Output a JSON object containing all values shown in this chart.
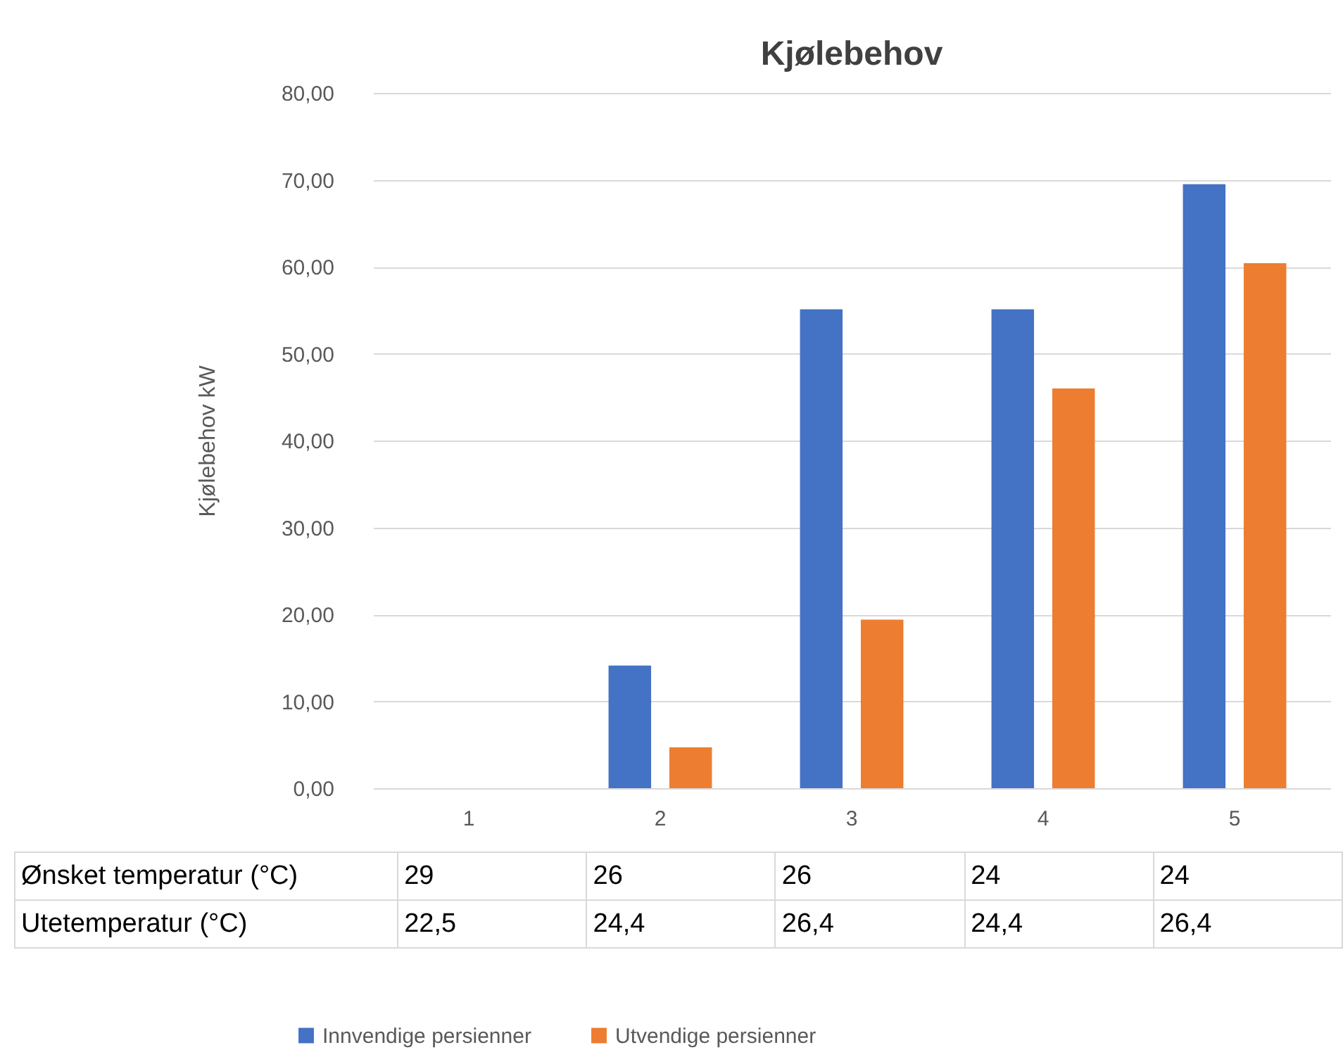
{
  "chart_data": {
    "type": "bar",
    "title": "Kjølebehov",
    "ylabel": "Kjølebehov kW",
    "categories": [
      "1",
      "2",
      "3",
      "4",
      "5"
    ],
    "series": [
      {
        "name": "Innvendige persienner",
        "color": "#4472c4",
        "values": [
          null,
          14.1,
          55.1,
          55.1,
          69.5
        ]
      },
      {
        "name": "Utvendige persienner",
        "color": "#ed7d31",
        "values": [
          null,
          4.7,
          19.4,
          46.0,
          60.4
        ]
      }
    ],
    "ylim": [
      0,
      80
    ],
    "yticks": [
      {
        "value": 0,
        "label": "0,00"
      },
      {
        "value": 10,
        "label": "10,00"
      },
      {
        "value": 20,
        "label": "20,00"
      },
      {
        "value": 30,
        "label": "30,00"
      },
      {
        "value": 40,
        "label": "40,00"
      },
      {
        "value": 50,
        "label": "50,00"
      },
      {
        "value": 60,
        "label": "60,00"
      },
      {
        "value": 70,
        "label": "70,00"
      },
      {
        "value": 80,
        "label": "80,00"
      }
    ],
    "grid": "y",
    "legend": "bottom",
    "annotations": [
      "Ønsket temperatur (°C)",
      "29",
      "26",
      "26",
      "24",
      "24",
      "Utetemperatur (°C)",
      "22,5",
      "24,4",
      "26,4",
      "24,4",
      "26,4"
    ]
  }
}
